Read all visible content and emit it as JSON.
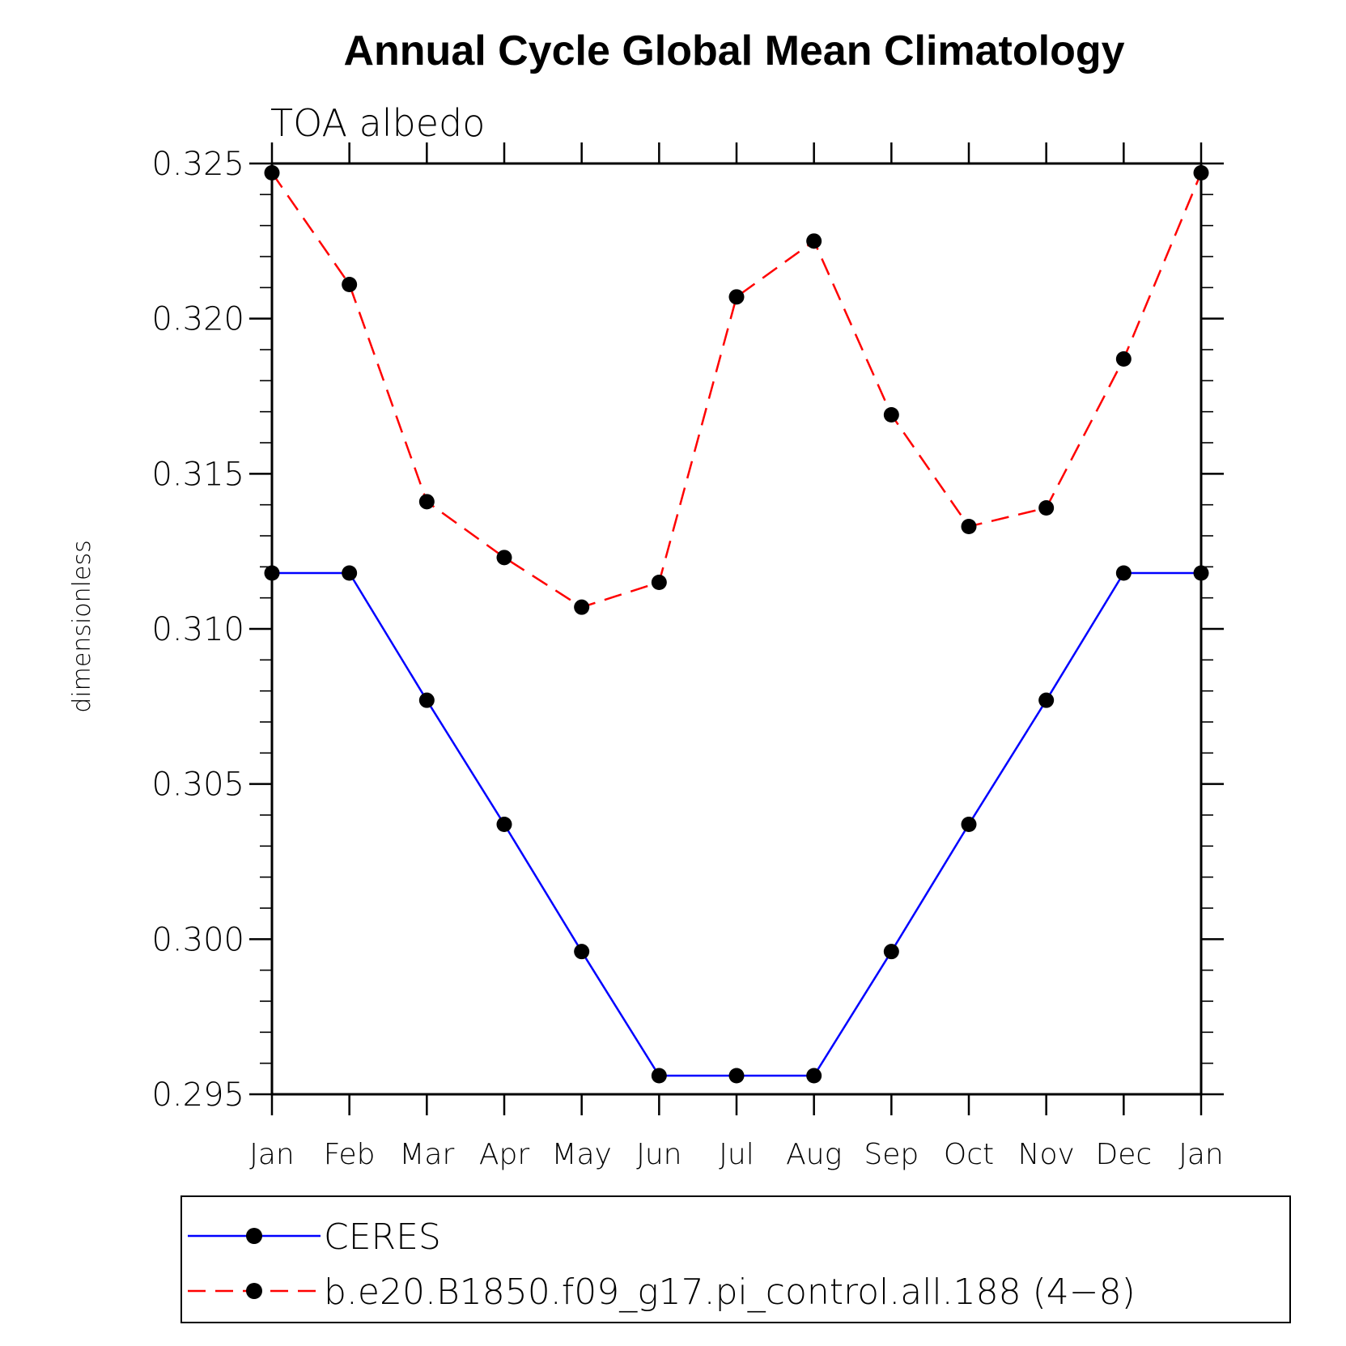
{
  "chart_data": {
    "type": "line",
    "title": "Annual Cycle Global Mean Climatology",
    "subtitle": "TOA albedo",
    "xlabel": "",
    "ylabel": "dimensionless",
    "categories": [
      "Jan",
      "Feb",
      "Mar",
      "Apr",
      "May",
      "Jun",
      "Jul",
      "Aug",
      "Sep",
      "Oct",
      "Nov",
      "Dec",
      "Jan"
    ],
    "ylim": [
      0.295,
      0.325
    ],
    "yticks": [
      "0.295",
      "0.300",
      "0.305",
      "0.310",
      "0.315",
      "0.320",
      "0.325"
    ],
    "grid": false,
    "legend_position": "bottom",
    "series": [
      {
        "name": "CERES",
        "color": "#0000ff",
        "style": "solid",
        "marker": "filled-circle",
        "values": [
          0.3118,
          0.3118,
          0.3077,
          0.3037,
          0.2996,
          0.2956,
          0.2956,
          0.2956,
          0.2996,
          0.3037,
          0.3077,
          0.3118,
          0.3118
        ]
      },
      {
        "name": "b.e20.B1850.f09_g17.pi_control.all.188 (4−8)",
        "color": "#ff0000",
        "style": "dashed",
        "marker": "filled-circle",
        "values": [
          0.3247,
          0.3211,
          0.3141,
          0.3123,
          0.3107,
          0.3115,
          0.3207,
          0.3225,
          0.3169,
          0.3133,
          0.3139,
          0.3187,
          0.3247
        ]
      }
    ]
  }
}
